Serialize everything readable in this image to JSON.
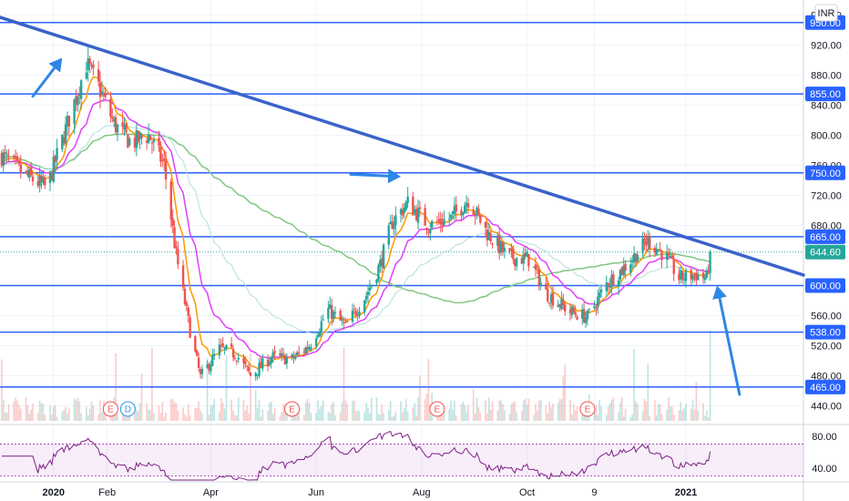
{
  "chart_data": {
    "type": "candlestick",
    "currency": "INR",
    "price_axis": {
      "min": 420,
      "max": 980,
      "ticks": [
        "960.00",
        "920.00",
        "880.00",
        "840.00",
        "800.00",
        "760.00",
        "720.00",
        "680.00",
        "640.00",
        "600.00",
        "560.00",
        "520.00",
        "480.00",
        "440.00"
      ]
    },
    "rsi_axis": {
      "min": 25,
      "max": 90,
      "ticks": [
        "80.00",
        "40.00"
      ],
      "upper_band": 70,
      "lower_band": 30
    },
    "x_axis": {
      "start": "2019-12-01",
      "end": "2021-03-10",
      "labels": [
        {
          "text": "2020",
          "date": "2020-01-01",
          "bold": true
        },
        {
          "text": "Feb",
          "date": "2020-02-01",
          "bold": false
        },
        {
          "text": "Apr",
          "date": "2020-04-01",
          "bold": false
        },
        {
          "text": "Jun",
          "date": "2020-06-01",
          "bold": false
        },
        {
          "text": "Aug",
          "date": "2020-08-01",
          "bold": false
        },
        {
          "text": "Oct",
          "date": "2020-10-01",
          "bold": false
        },
        {
          "text": "9",
          "date": "2020-11-09",
          "bold": false
        },
        {
          "text": "2021",
          "date": "2021-01-01",
          "bold": true
        }
      ]
    },
    "horizontal_levels": [
      {
        "value": 950,
        "label": "950.00"
      },
      {
        "value": 855,
        "label": "855.00"
      },
      {
        "value": 750,
        "label": "750.00"
      },
      {
        "value": 665,
        "label": "665.00"
      },
      {
        "value": 600,
        "label": "600.00"
      },
      {
        "value": 538,
        "label": "538.00"
      },
      {
        "value": 465,
        "label": "465.00"
      }
    ],
    "last_price": {
      "value": 644.6,
      "label": "644.60",
      "color": "#26a69a"
    },
    "trendline": {
      "from": {
        "date": "2019-12-01",
        "price": 957
      },
      "to": {
        "date": "2021-03-10",
        "price": 614
      }
    },
    "events": [
      {
        "letter": "E",
        "date": "2020-02-03",
        "color": "#ef5350"
      },
      {
        "letter": "D",
        "date": "2020-02-13",
        "color": "#2196f3"
      },
      {
        "letter": "E",
        "date": "2020-05-18",
        "color": "#ef5350"
      },
      {
        "letter": "E",
        "date": "2020-08-10",
        "color": "#ef5350"
      },
      {
        "letter": "E",
        "date": "2020-11-05",
        "color": "#ef5350"
      }
    ],
    "arrows": [
      {
        "from": {
          "date": "2019-12-20",
          "price": 852
        },
        "to": {
          "date": "2020-01-06",
          "price": 903
        }
      },
      {
        "from": {
          "date": "2020-06-21",
          "price": 748
        },
        "to": {
          "date": "2020-07-20",
          "price": 745
        }
      },
      {
        "from": {
          "date": "2021-02-01",
          "price": 455
        },
        "to": {
          "date": "2021-01-19",
          "price": 600
        }
      }
    ],
    "price_waypoints": [
      [
        "2019-12-01",
        775
      ],
      [
        "2019-12-15",
        748
      ],
      [
        "2019-12-28",
        730
      ],
      [
        "2020-01-08",
        808
      ],
      [
        "2020-01-20",
        895
      ],
      [
        "2020-01-28",
        860
      ],
      [
        "2020-02-05",
        815
      ],
      [
        "2020-02-15",
        790
      ],
      [
        "2020-02-25",
        800
      ],
      [
        "2020-03-05",
        760
      ],
      [
        "2020-03-12",
        640
      ],
      [
        "2020-03-20",
        540
      ],
      [
        "2020-03-26",
        478
      ],
      [
        "2020-04-06",
        516
      ],
      [
        "2020-04-16",
        508
      ],
      [
        "2020-04-24",
        480
      ],
      [
        "2020-05-06",
        505
      ],
      [
        "2020-05-18",
        502
      ],
      [
        "2020-05-28",
        520
      ],
      [
        "2020-06-08",
        568
      ],
      [
        "2020-06-18",
        545
      ],
      [
        "2020-06-30",
        588
      ],
      [
        "2020-07-08",
        628
      ],
      [
        "2020-07-15",
        685
      ],
      [
        "2020-07-24",
        710
      ],
      [
        "2020-08-05",
        680
      ],
      [
        "2020-08-18",
        690
      ],
      [
        "2020-08-28",
        715
      ],
      [
        "2020-09-08",
        670
      ],
      [
        "2020-09-20",
        638
      ],
      [
        "2020-10-02",
        635
      ],
      [
        "2020-10-12",
        590
      ],
      [
        "2020-10-26",
        565
      ],
      [
        "2020-11-05",
        558
      ],
      [
        "2020-11-16",
        602
      ],
      [
        "2020-11-28",
        628
      ],
      [
        "2020-12-10",
        660
      ],
      [
        "2020-12-20",
        640
      ],
      [
        "2020-12-28",
        610
      ],
      [
        "2021-01-07",
        615
      ],
      [
        "2021-01-13",
        610
      ],
      [
        "2021-01-15",
        644.6
      ]
    ],
    "indicators": [
      {
        "name": "",
        "color": "#ff9800",
        "type": "ema_short"
      },
      {
        "name": "",
        "color": "#e040fb",
        "type": "ema_mid"
      },
      {
        "name": "",
        "color": "#b2dfdb",
        "type": "ema_long"
      },
      {
        "name": "",
        "color": "#81c784",
        "type": "sma_long"
      }
    ]
  }
}
